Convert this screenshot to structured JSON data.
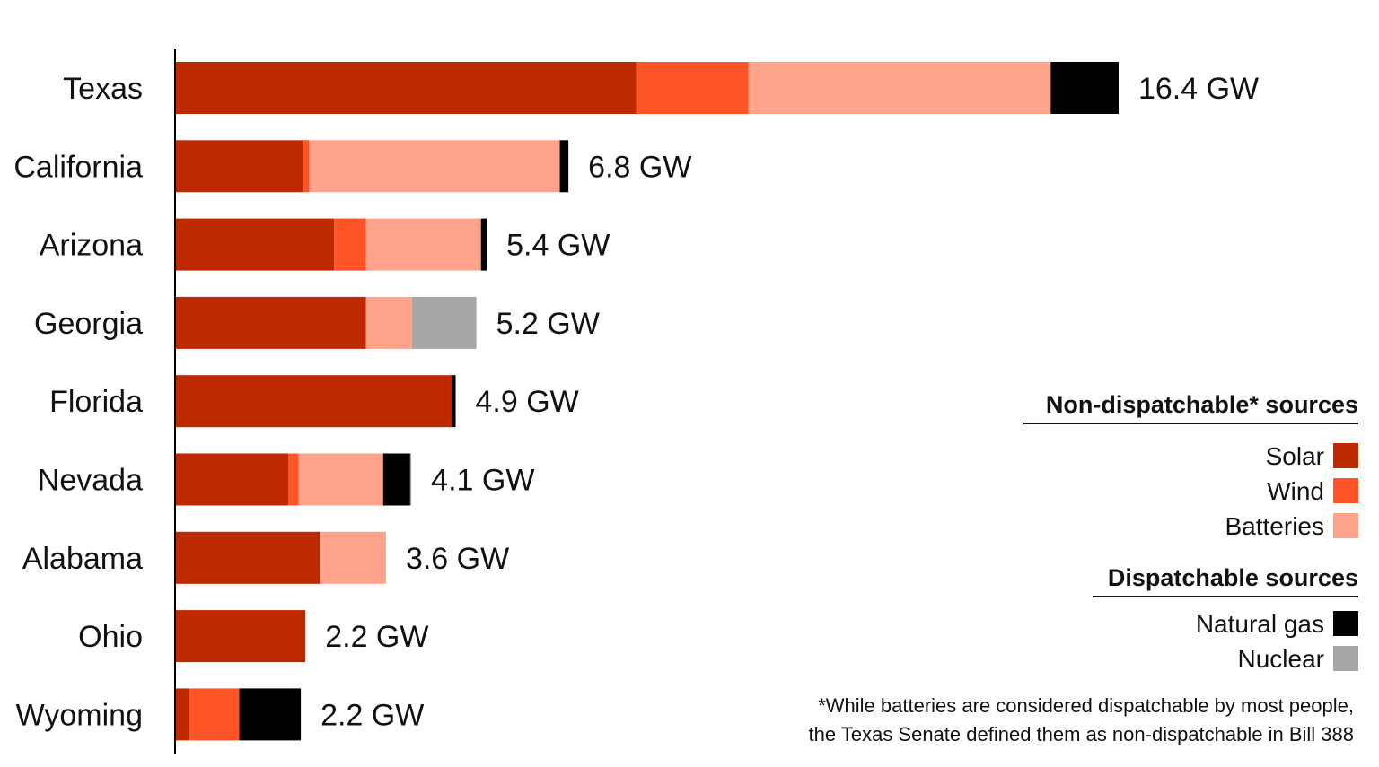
{
  "chart_data": {
    "type": "bar",
    "orientation": "horizontal",
    "stacked": true,
    "unit": "GW",
    "categories": [
      "Texas",
      "California",
      "Arizona",
      "Georgia",
      "Florida",
      "Nevada",
      "Alabama",
      "Ohio",
      "Wyoming"
    ],
    "totals_labels": [
      "16.4 GW",
      "6.8 GW",
      "5.4 GW",
      "5.2 GW",
      "4.9 GW",
      "4.1 GW",
      "3.6 GW",
      "2.2 GW",
      "2.2 GW"
    ],
    "series": [
      {
        "name": "Solar",
        "color": "#BD2A00",
        "values": [
          8.0,
          2.2,
          2.75,
          3.3,
          4.8,
          1.95,
          2.5,
          2.25,
          0.22
        ]
      },
      {
        "name": "Wind",
        "color": "#FF5426",
        "values": [
          1.95,
          0.12,
          0.55,
          0.0,
          0.0,
          0.18,
          0.0,
          0.0,
          0.88
        ]
      },
      {
        "name": "Batteries",
        "color": "#FFA48A",
        "values": [
          5.25,
          4.35,
          2.0,
          0.8,
          0.0,
          1.47,
          1.15,
          0.0,
          0.0
        ]
      },
      {
        "name": "Natural gas",
        "color": "#000000",
        "values": [
          1.18,
          0.15,
          0.1,
          0.0,
          0.06,
          0.47,
          0.0,
          0.0,
          1.07
        ]
      },
      {
        "name": "Nuclear",
        "color": "#A6A6A6",
        "values": [
          0.0,
          0.0,
          0.0,
          1.12,
          0.0,
          0.02,
          0.0,
          0.0,
          0.0
        ]
      }
    ],
    "xlim": [
      0,
      20
    ],
    "grid": false,
    "legend": {
      "position": "right",
      "groups": [
        {
          "heading": "Non-dispatchable* sources",
          "items": [
            "Solar",
            "Wind",
            "Batteries"
          ]
        },
        {
          "heading": "Dispatchable sources",
          "items": [
            "Natural gas",
            "Nuclear"
          ]
        }
      ]
    },
    "footnote": [
      "*While batteries are considered dispatchable by most people,",
      "the Texas Senate defined them as non-dispatchable in Bill 388"
    ]
  }
}
